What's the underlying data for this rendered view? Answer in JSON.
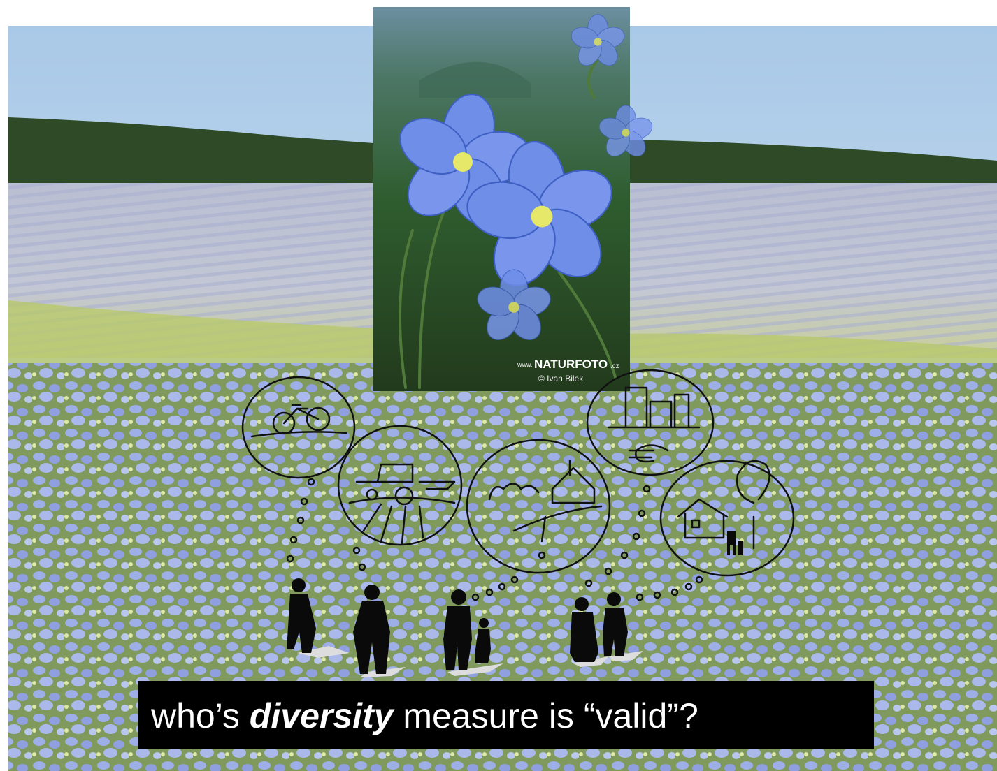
{
  "caption": {
    "prefix": "who’s ",
    "emphasis": "diversity",
    "suffix": " measure is “valid”?"
  },
  "watermark": {
    "www": "www.",
    "brand": "NATURFOTO",
    "domain": ".cz",
    "credit": "© Ivan Bilek"
  }
}
